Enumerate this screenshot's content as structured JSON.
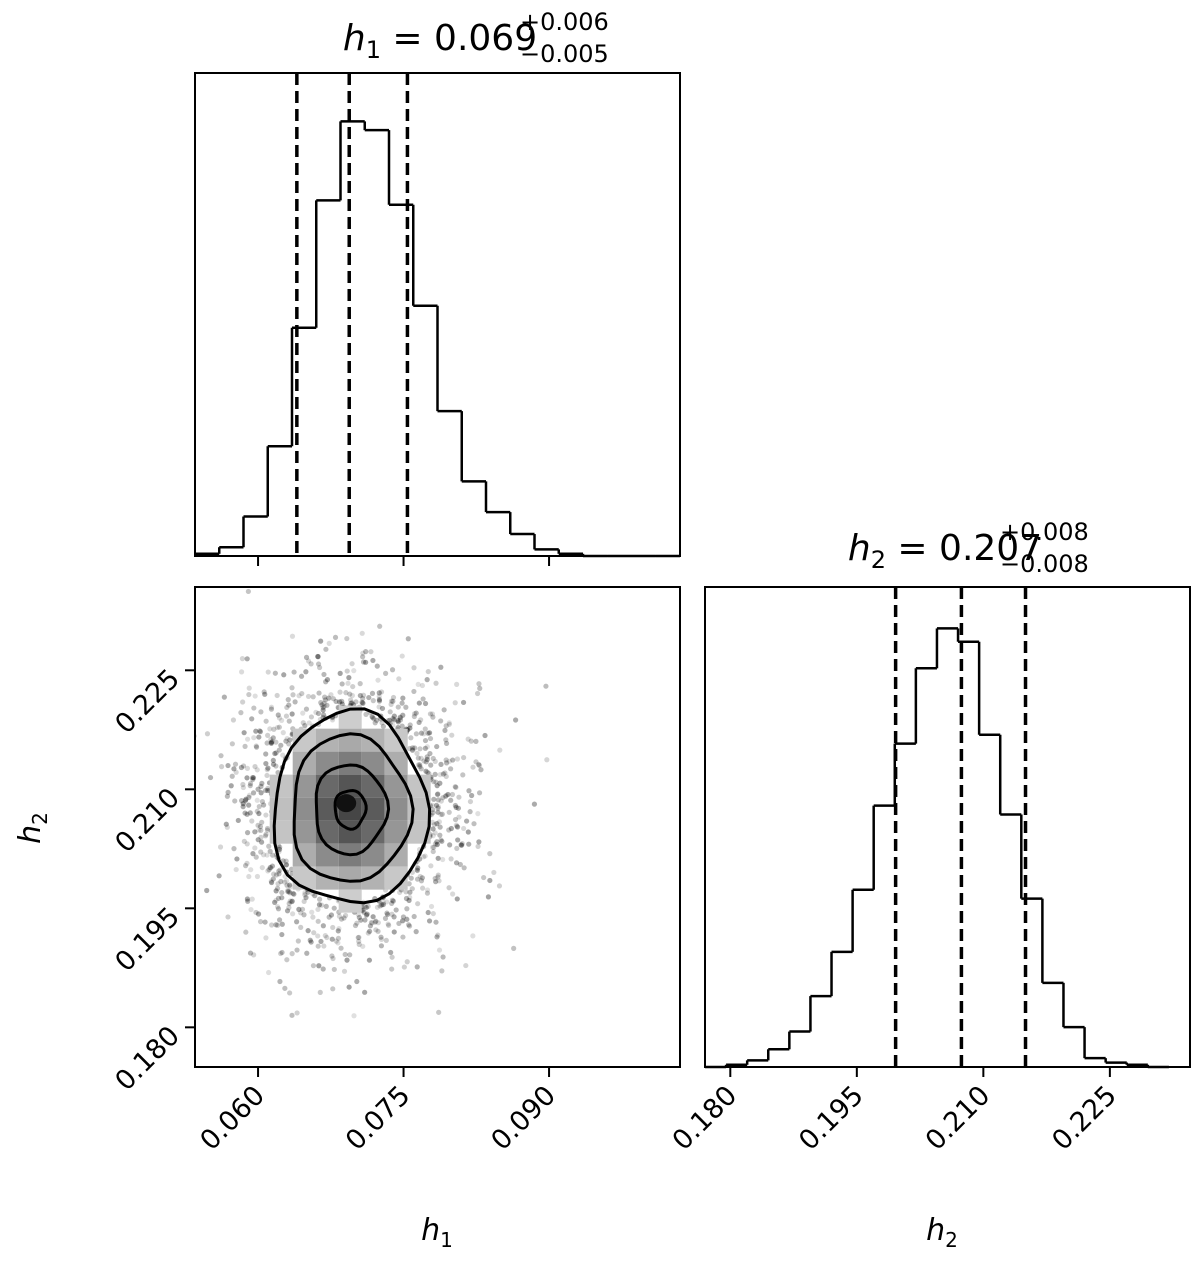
{
  "chart_data": [
    {
      "type": "histogram",
      "panel": "top-left",
      "parameter": "h_1",
      "title": {
        "lhs": "h",
        "sub": "1",
        "rhs": " = 0.069",
        "plus": "+0.006",
        "minus": "−0.005"
      },
      "xlim": [
        0.0535,
        0.1035
      ],
      "quantiles": [
        0.064,
        0.0694,
        0.0754
      ],
      "bin_edges": [
        0.0535,
        0.056,
        0.0585,
        0.061,
        0.0635,
        0.066,
        0.0685,
        0.071,
        0.0735,
        0.076,
        0.0785,
        0.081,
        0.0835,
        0.086,
        0.0885,
        0.091,
        0.0935,
        0.096,
        0.0985,
        0.101,
        0.1035
      ],
      "counts": [
        0.005,
        0.02,
        0.09,
        0.25,
        0.52,
        0.81,
        0.99,
        0.97,
        0.8,
        0.57,
        0.33,
        0.17,
        0.1,
        0.05,
        0.015,
        0.005,
        0.0,
        0.0,
        0.0,
        0.0
      ],
      "xticks": [],
      "yticks": []
    },
    {
      "type": "histogram",
      "panel": "bottom-right",
      "parameter": "h_2",
      "title": {
        "lhs": "h",
        "sub": "2",
        "rhs": " = 0.207",
        "plus": "+0.008",
        "minus": "−0.008"
      },
      "xlim": [
        0.177,
        0.2345
      ],
      "quantiles": [
        0.1996,
        0.2074,
        0.215
      ],
      "bin_edges": [
        0.177,
        0.1795,
        0.182,
        0.1845,
        0.187,
        0.1895,
        0.192,
        0.1945,
        0.197,
        0.1995,
        0.202,
        0.2045,
        0.207,
        0.2095,
        0.212,
        0.2145,
        0.217,
        0.2195,
        0.222,
        0.2245,
        0.227,
        0.2295,
        0.232
      ],
      "counts": [
        0.0,
        0.005,
        0.015,
        0.04,
        0.08,
        0.16,
        0.26,
        0.4,
        0.59,
        0.73,
        0.9,
        0.99,
        0.96,
        0.75,
        0.57,
        0.38,
        0.19,
        0.09,
        0.02,
        0.01,
        0.005,
        0.0
      ],
      "xticks": [
        "0.180",
        "0.195",
        "0.210",
        "0.225"
      ],
      "xtick_values": [
        0.18,
        0.195,
        0.21,
        0.225
      ],
      "xlabel": {
        "base": "h",
        "sub": "2"
      }
    },
    {
      "type": "scatter",
      "panel": "bottom-left",
      "x_parameter": "h_1",
      "y_parameter": "h_2",
      "xlim": [
        0.0535,
        0.1035
      ],
      "ylim": [
        0.175,
        0.2355
      ],
      "mean": [
        0.0695,
        0.2075
      ],
      "std": [
        0.0053,
        0.0077
      ],
      "contour_levels": 3,
      "xticks": [
        "0.060",
        "0.075",
        "0.090"
      ],
      "xtick_values": [
        0.06,
        0.075,
        0.09
      ],
      "yticks": [
        "0.180",
        "0.195",
        "0.210",
        "0.225"
      ],
      "ytick_values": [
        0.18,
        0.195,
        0.21,
        0.225
      ],
      "xlabel": {
        "base": "h",
        "sub": "1"
      },
      "ylabel": {
        "base": "h",
        "sub": "2"
      }
    }
  ]
}
